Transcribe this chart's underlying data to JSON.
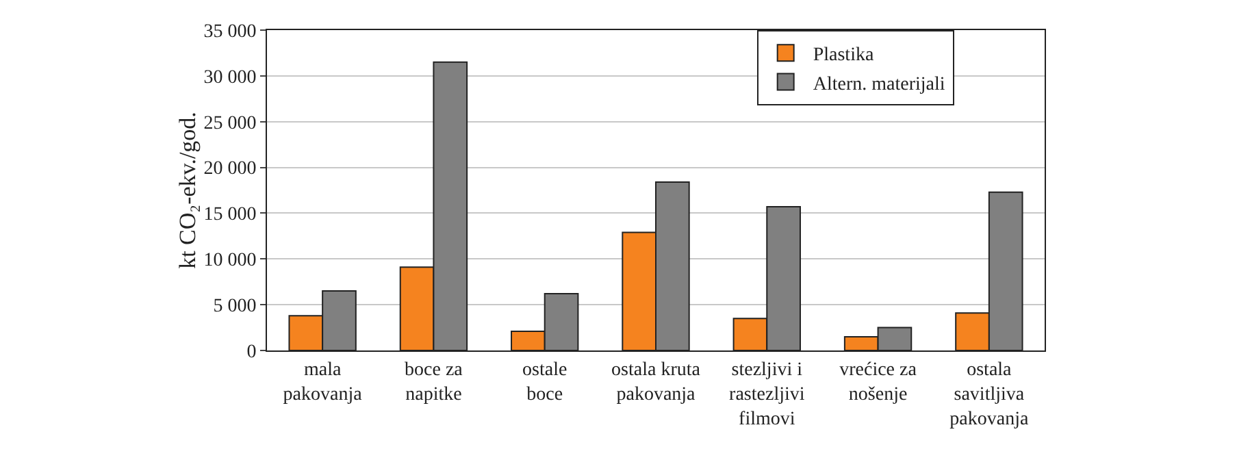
{
  "chart_data": {
    "type": "bar",
    "ylabel": "kt CO₂-ekv./god.",
    "categories": [
      "mala\npakovanja",
      "boce za\nnapitke",
      "ostale\nboce",
      "ostala kruta\npakovanja",
      "stezljivi i\nrastezljivi\nfilmovi",
      "vrećice za\nnošenje",
      "ostala\nsavitljiva\npakovanja"
    ],
    "series": [
      {
        "name": "Plastika",
        "color": "#f5831f",
        "values": [
          3800,
          9100,
          2100,
          12900,
          3500,
          1500,
          4100
        ]
      },
      {
        "name": "Altern. materijali",
        "color": "#808080",
        "values": [
          6500,
          31500,
          6200,
          18400,
          15700,
          2500,
          17300
        ]
      }
    ],
    "ylim": [
      0,
      35000
    ],
    "yticks": [
      0,
      {
        "value": 5000,
        "label": "5 000"
      },
      {
        "value": 10000,
        "label": "10 000"
      },
      {
        "value": 15000,
        "label": "15 000"
      },
      {
        "value": 20000,
        "label": "20 000"
      },
      {
        "value": 25000,
        "label": "25 000"
      },
      {
        "value": 30000,
        "label": "30 000"
      },
      {
        "value": 35000,
        "label": "35 000"
      }
    ],
    "grid": "y",
    "legend": "top right"
  }
}
